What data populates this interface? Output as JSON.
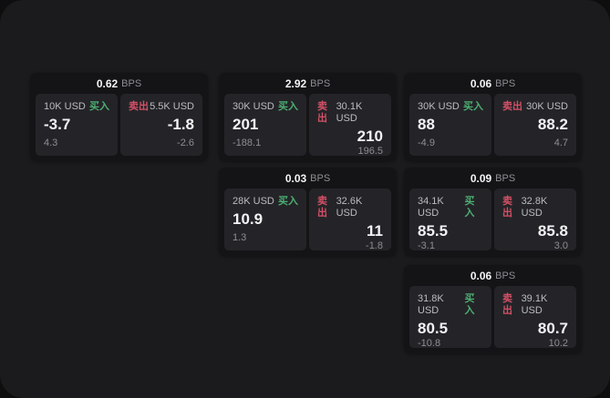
{
  "colors": {
    "buy-green": "#4caf72",
    "sell-red": "#d25066",
    "panel-bg": "#1b1b1d",
    "card-bg": "#141416",
    "tile-bg": "#242428"
  },
  "cards": [
    {
      "bps_value": "0.62",
      "bps_unit": "BPS",
      "buy": {
        "amount": "10K USD",
        "label": "买入",
        "value": "-3.7",
        "sub": "4.3"
      },
      "sell": {
        "label": "卖出",
        "amount": "5.5K USD",
        "value": "-1.8",
        "sub": "-2.6"
      }
    },
    {
      "bps_value": "2.92",
      "bps_unit": "BPS",
      "buy": {
        "amount": "30K USD",
        "label": "买入",
        "value": "201",
        "sub": "-188.1"
      },
      "sell": {
        "label": "卖出",
        "amount": "30.1K USD",
        "value": "210",
        "sub": "196.5"
      }
    },
    {
      "bps_value": "0.06",
      "bps_unit": "BPS",
      "buy": {
        "amount": "30K USD",
        "label": "买入",
        "value": "88",
        "sub": "-4.9"
      },
      "sell": {
        "label": "卖出",
        "amount": "30K USD",
        "value": "88.2",
        "sub": "4.7"
      }
    },
    {
      "bps_value": "0.03",
      "bps_unit": "BPS",
      "buy": {
        "amount": "28K USD",
        "label": "买入",
        "value": "10.9",
        "sub": "1.3"
      },
      "sell": {
        "label": "卖出",
        "amount": "32.6K USD",
        "value": "11",
        "sub": "-1.8"
      }
    },
    {
      "bps_value": "0.09",
      "bps_unit": "BPS",
      "buy": {
        "amount": "34.1K USD",
        "label": "买入",
        "value": "85.5",
        "sub": "-3.1"
      },
      "sell": {
        "label": "卖出",
        "amount": "32.8K USD",
        "value": "85.8",
        "sub": "3.0"
      }
    },
    {
      "bps_value": "0.06",
      "bps_unit": "BPS",
      "buy": {
        "amount": "31.8K USD",
        "label": "买入",
        "value": "80.5",
        "sub": "-10.8"
      },
      "sell": {
        "label": "卖出",
        "amount": "39.1K USD",
        "value": "80.7",
        "sub": "10.2"
      }
    }
  ]
}
